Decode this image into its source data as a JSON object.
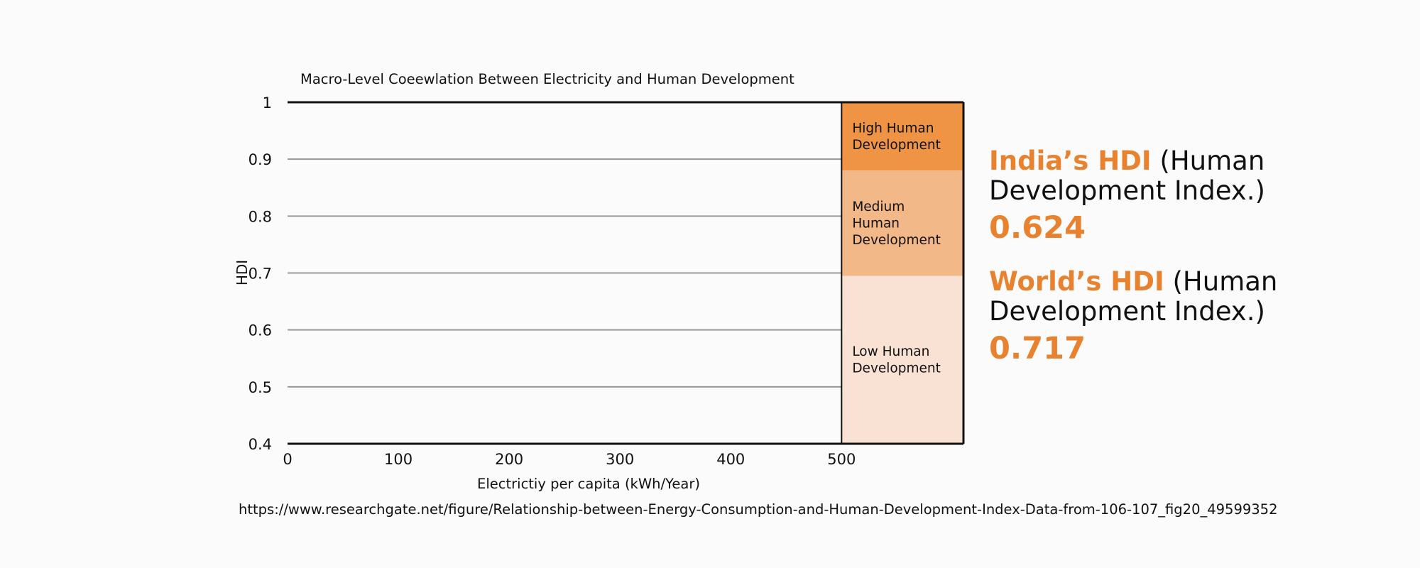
{
  "chart_data": {
    "type": "area",
    "title": "Macro-Level Coeewlation Between Electricity and Human Development",
    "xlabel": "Electrictiy per capita (kWh/Year)",
    "ylabel": "HDI",
    "xlim": [
      0,
      610
    ],
    "ylim": [
      0.4,
      1
    ],
    "x_ticks": [
      0,
      100,
      200,
      300,
      400,
      500
    ],
    "x_tick_labels": [
      "0",
      "100",
      "200",
      "300",
      "400",
      "500"
    ],
    "y_ticks": [
      0.4,
      0.5,
      0.6,
      0.7,
      0.8,
      0.9,
      1
    ],
    "y_tick_labels": [
      "0.4",
      "0.5",
      "0.6",
      "0.7",
      "0.8",
      "0.9",
      "1"
    ],
    "grid": true,
    "bands": [
      {
        "label": "High Human Development",
        "lines": [
          "High Human",
          "Development"
        ],
        "x_from": 500,
        "y_from": 0.88,
        "y_to": 1.0,
        "color": "#ef9445"
      },
      {
        "label": "Medium Human Development",
        "lines": [
          "Medium",
          "Human",
          "Development"
        ],
        "x_from": 500,
        "y_from": 0.695,
        "y_to": 0.88,
        "color": "#f2b888"
      },
      {
        "label": "Low Human Development",
        "lines": [
          "Low Human",
          "Development"
        ],
        "x_from": 500,
        "y_from": 0.4,
        "y_to": 0.695,
        "color": "#f9e2d3"
      }
    ]
  },
  "stats": [
    {
      "key": "India’s HDI",
      "description": "(Human Development Index.)",
      "value": "0.624"
    },
    {
      "key": "World’s HDI",
      "description": "(Human Development Index.)",
      "value": "0.717"
    }
  ],
  "source": "https://www.researchgate.net/figure/Relationship-between-Energy-Consumption-and-Human-Development-Index-Data-from-106-107_fig20_49599352",
  "colors": {
    "accent": "#e8822f",
    "grid": "#999999",
    "axis": "#111111"
  }
}
